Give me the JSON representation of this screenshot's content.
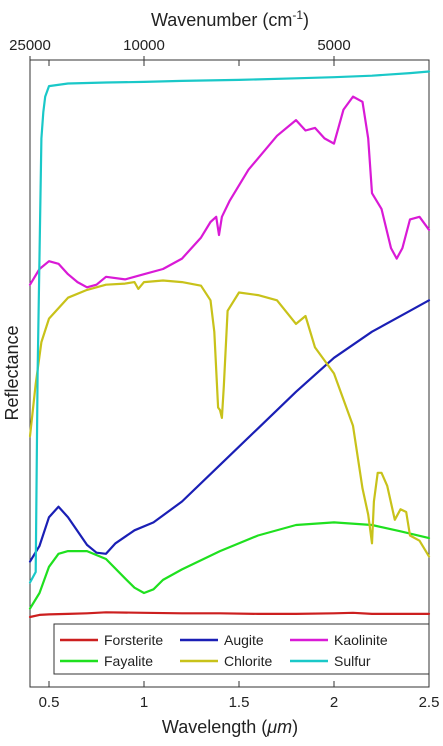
{
  "chart_data": {
    "type": "line",
    "xlabel_main": "Wavelength (",
    "xlabel_unit": "μm",
    "xlabel_close": ")",
    "xlabel_top_main": "Wavenumber (cm",
    "xlabel_top_sup": "-1",
    "xlabel_top_close": ")",
    "ylabel": "Reflectance",
    "xlim": [
      0.4,
      2.5
    ],
    "x_ticks": [
      0.5,
      1,
      1.5,
      2,
      2.5
    ],
    "x_tick_labels": [
      "0.5",
      "1",
      "1.5",
      "2",
      "2.5"
    ],
    "top_ticks_wavenumber": [
      25000,
      10000,
      5000
    ],
    "top_tick_labels": [
      "25000",
      "10000",
      "5000"
    ],
    "y_ticks_shown": false,
    "legend_position": "bottom",
    "series": [
      {
        "name": "Forsterite",
        "color": "#cc1f1f",
        "x": [
          0.4,
          0.45,
          0.5,
          0.6,
          0.7,
          0.8,
          1.0,
          1.2,
          1.4,
          1.6,
          1.8,
          2.0,
          2.1,
          2.2,
          2.3,
          2.5
        ],
        "y": [
          0.134,
          0.138,
          0.139,
          0.14,
          0.141,
          0.143,
          0.142,
          0.141,
          0.141,
          0.14,
          0.14,
          0.141,
          0.142,
          0.14,
          0.14,
          0.14
        ]
      },
      {
        "name": "Fayalite",
        "color": "#1fe01f",
        "x": [
          0.4,
          0.45,
          0.5,
          0.55,
          0.6,
          0.7,
          0.8,
          0.9,
          0.95,
          1.0,
          1.05,
          1.1,
          1.2,
          1.4,
          1.6,
          1.8,
          2.0,
          2.2,
          2.35,
          2.5
        ],
        "y": [
          0.15,
          0.18,
          0.23,
          0.255,
          0.26,
          0.26,
          0.245,
          0.208,
          0.19,
          0.18,
          0.187,
          0.205,
          0.225,
          0.26,
          0.29,
          0.31,
          0.315,
          0.31,
          0.298,
          0.285
        ]
      },
      {
        "name": "Augite",
        "color": "#1a1fb5",
        "x": [
          0.4,
          0.45,
          0.5,
          0.55,
          0.6,
          0.7,
          0.75,
          0.8,
          0.85,
          0.95,
          1.05,
          1.2,
          1.4,
          1.6,
          1.8,
          2.0,
          2.2,
          2.4,
          2.5
        ],
        "y": [
          0.24,
          0.27,
          0.325,
          0.345,
          0.325,
          0.272,
          0.257,
          0.255,
          0.275,
          0.3,
          0.315,
          0.355,
          0.425,
          0.495,
          0.565,
          0.63,
          0.68,
          0.72,
          0.74
        ]
      },
      {
        "name": "Chlorite",
        "color": "#c8c21a",
        "x": [
          0.4,
          0.43,
          0.46,
          0.5,
          0.6,
          0.7,
          0.8,
          0.9,
          0.95,
          0.97,
          1.0,
          1.1,
          1.2,
          1.3,
          1.35,
          1.37,
          1.39,
          1.4,
          1.41,
          1.42,
          1.44,
          1.5,
          1.6,
          1.7,
          1.8,
          1.85,
          1.9,
          2.0,
          2.1,
          2.15,
          2.18,
          2.2,
          2.21,
          2.23,
          2.25,
          2.28,
          2.32,
          2.35,
          2.38,
          2.4,
          2.45,
          2.5
        ],
        "y": [
          0.48,
          0.58,
          0.66,
          0.705,
          0.745,
          0.76,
          0.77,
          0.772,
          0.775,
          0.762,
          0.775,
          0.778,
          0.775,
          0.768,
          0.74,
          0.68,
          0.535,
          0.53,
          0.515,
          0.575,
          0.72,
          0.755,
          0.75,
          0.74,
          0.695,
          0.71,
          0.65,
          0.6,
          0.5,
          0.38,
          0.33,
          0.275,
          0.355,
          0.41,
          0.41,
          0.385,
          0.32,
          0.34,
          0.335,
          0.29,
          0.28,
          0.25
        ]
      },
      {
        "name": "Kaolinite",
        "color": "#d91ad6",
        "x": [
          0.4,
          0.45,
          0.5,
          0.55,
          0.6,
          0.65,
          0.7,
          0.75,
          0.8,
          0.9,
          1.0,
          1.1,
          1.2,
          1.3,
          1.35,
          1.38,
          1.395,
          1.41,
          1.45,
          1.55,
          1.7,
          1.8,
          1.85,
          1.9,
          1.95,
          2.0,
          2.05,
          2.1,
          2.15,
          2.18,
          2.2,
          2.25,
          2.3,
          2.33,
          2.36,
          2.4,
          2.45,
          2.5
        ],
        "y": [
          0.77,
          0.8,
          0.815,
          0.81,
          0.79,
          0.775,
          0.765,
          0.77,
          0.785,
          0.78,
          0.79,
          0.8,
          0.82,
          0.86,
          0.89,
          0.9,
          0.865,
          0.9,
          0.93,
          0.99,
          1.055,
          1.085,
          1.065,
          1.07,
          1.05,
          1.04,
          1.105,
          1.13,
          1.12,
          1.05,
          0.945,
          0.915,
          0.84,
          0.82,
          0.84,
          0.895,
          0.9,
          0.875
        ]
      },
      {
        "name": "Sulfur",
        "color": "#1ac8c8",
        "x": [
          0.4,
          0.43,
          0.44,
          0.46,
          0.47,
          0.48,
          0.5,
          0.6,
          0.8,
          1.0,
          1.2,
          1.5,
          1.8,
          2.0,
          2.2,
          2.4,
          2.5
        ],
        "y": [
          0.2,
          0.22,
          0.6,
          1.05,
          1.1,
          1.13,
          1.15,
          1.155,
          1.157,
          1.158,
          1.16,
          1.162,
          1.165,
          1.167,
          1.17,
          1.175,
          1.178
        ]
      }
    ]
  }
}
